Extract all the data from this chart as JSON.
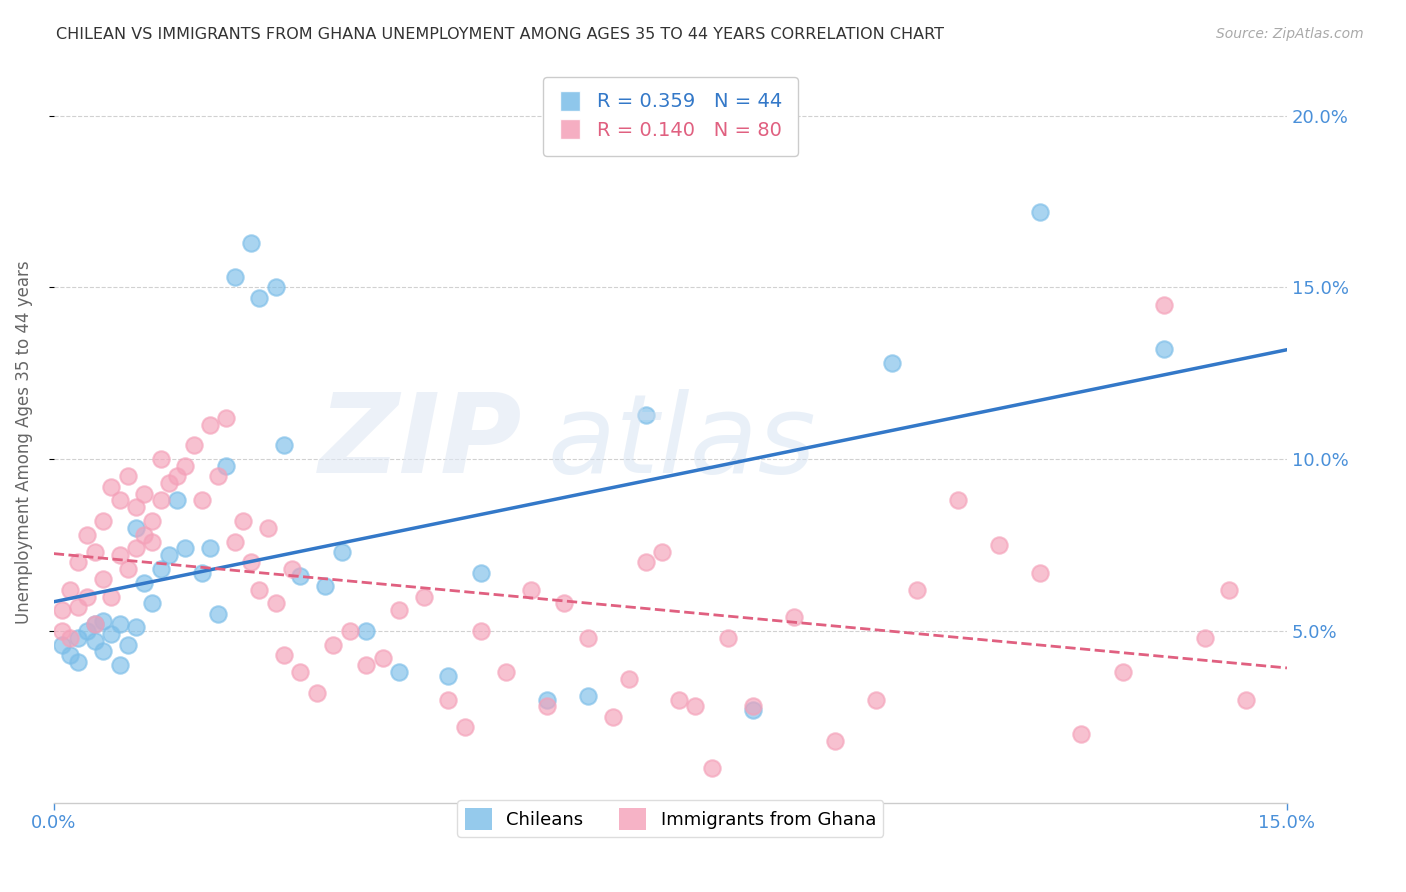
{
  "title": "CHILEAN VS IMMIGRANTS FROM GHANA UNEMPLOYMENT AMONG AGES 35 TO 44 YEARS CORRELATION CHART",
  "source": "Source: ZipAtlas.com",
  "ylabel": "Unemployment Among Ages 35 to 44 years",
  "xlim": [
    0.0,
    0.15
  ],
  "ylim": [
    0.0,
    0.21
  ],
  "ytick_vals": [
    0.05,
    0.1,
    0.15,
    0.2
  ],
  "chilean_color": "#7BBDE8",
  "ghana_color": "#F4A0B8",
  "chilean_line_color": "#3378C8",
  "ghana_line_color": "#E06080",
  "R_chilean": 0.359,
  "N_chilean": 44,
  "R_ghana": 0.14,
  "N_ghana": 80,
  "chilean_x": [
    0.001,
    0.002,
    0.003,
    0.003,
    0.004,
    0.005,
    0.005,
    0.006,
    0.006,
    0.007,
    0.008,
    0.008,
    0.009,
    0.01,
    0.01,
    0.011,
    0.012,
    0.013,
    0.014,
    0.015,
    0.016,
    0.018,
    0.019,
    0.02,
    0.021,
    0.022,
    0.024,
    0.025,
    0.027,
    0.028,
    0.03,
    0.033,
    0.035,
    0.038,
    0.042,
    0.048,
    0.052,
    0.06,
    0.065,
    0.072,
    0.085,
    0.102,
    0.12,
    0.135
  ],
  "chilean_y": [
    0.046,
    0.043,
    0.048,
    0.041,
    0.05,
    0.052,
    0.047,
    0.044,
    0.053,
    0.049,
    0.052,
    0.04,
    0.046,
    0.051,
    0.08,
    0.064,
    0.058,
    0.068,
    0.072,
    0.088,
    0.074,
    0.067,
    0.074,
    0.055,
    0.098,
    0.153,
    0.163,
    0.147,
    0.15,
    0.104,
    0.066,
    0.063,
    0.073,
    0.05,
    0.038,
    0.037,
    0.067,
    0.03,
    0.031,
    0.113,
    0.027,
    0.128,
    0.172,
    0.132
  ],
  "ghana_x": [
    0.001,
    0.001,
    0.002,
    0.002,
    0.003,
    0.003,
    0.004,
    0.004,
    0.005,
    0.005,
    0.006,
    0.006,
    0.007,
    0.007,
    0.008,
    0.008,
    0.009,
    0.009,
    0.01,
    0.01,
    0.011,
    0.011,
    0.012,
    0.012,
    0.013,
    0.013,
    0.014,
    0.015,
    0.016,
    0.017,
    0.018,
    0.019,
    0.02,
    0.021,
    0.022,
    0.023,
    0.024,
    0.025,
    0.026,
    0.027,
    0.028,
    0.029,
    0.03,
    0.032,
    0.034,
    0.036,
    0.038,
    0.04,
    0.042,
    0.045,
    0.048,
    0.05,
    0.052,
    0.055,
    0.058,
    0.06,
    0.062,
    0.065,
    0.068,
    0.07,
    0.072,
    0.074,
    0.076,
    0.078,
    0.08,
    0.082,
    0.085,
    0.09,
    0.095,
    0.1,
    0.105,
    0.11,
    0.115,
    0.12,
    0.125,
    0.13,
    0.135,
    0.14,
    0.143,
    0.145
  ],
  "ghana_y": [
    0.05,
    0.056,
    0.048,
    0.062,
    0.057,
    0.07,
    0.06,
    0.078,
    0.052,
    0.073,
    0.065,
    0.082,
    0.06,
    0.092,
    0.072,
    0.088,
    0.068,
    0.095,
    0.074,
    0.086,
    0.09,
    0.078,
    0.082,
    0.076,
    0.088,
    0.1,
    0.093,
    0.095,
    0.098,
    0.104,
    0.088,
    0.11,
    0.095,
    0.112,
    0.076,
    0.082,
    0.07,
    0.062,
    0.08,
    0.058,
    0.043,
    0.068,
    0.038,
    0.032,
    0.046,
    0.05,
    0.04,
    0.042,
    0.056,
    0.06,
    0.03,
    0.022,
    0.05,
    0.038,
    0.062,
    0.028,
    0.058,
    0.048,
    0.025,
    0.036,
    0.07,
    0.073,
    0.03,
    0.028,
    0.01,
    0.048,
    0.028,
    0.054,
    0.018,
    0.03,
    0.062,
    0.088,
    0.075,
    0.067,
    0.02,
    0.038,
    0.145,
    0.048,
    0.062,
    0.03
  ]
}
